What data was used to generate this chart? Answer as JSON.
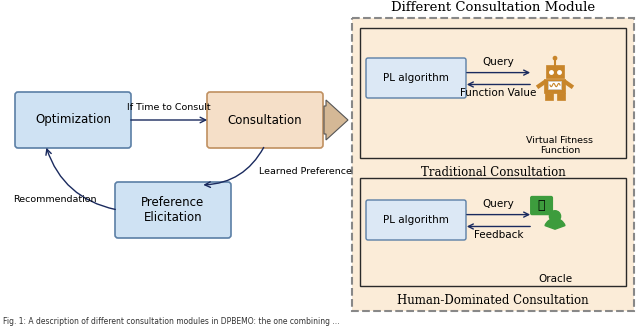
{
  "title_module": "Different Consultation Module",
  "title_traditional": "Traditional Consultation",
  "title_human": "Human-Dominated Consultation",
  "box_optimization": "Optimization",
  "box_consultation": "Consultation",
  "box_preference": "Preference\nElicitation",
  "box_pl_algorithm": "PL algorithm",
  "label_if_time": "If Time to Consult",
  "label_recommendation": "Recommendation",
  "label_learned": "Learned Preference",
  "label_query_top": "Query",
  "label_function_value": "Function Value",
  "label_virtual": "Virtual Fitness\nFunction",
  "label_query_bot": "Query",
  "label_feedback": "Feedback",
  "label_oracle": "Oracle",
  "color_blue_fill": "#cfe2f3",
  "color_blue_border": "#5b7fa6",
  "color_orange_fill": "#f5dfc8",
  "color_orange_border": "#c09060",
  "color_panel_bg": "#fbecd8",
  "color_dashed_border": "#888888",
  "color_arrow": "#1a2a5e",
  "color_robot": "#c8852a",
  "color_green": "#3d9c3d",
  "color_big_arrow": "#d4b896",
  "figsize": [
    6.4,
    3.31
  ],
  "dpi": 100
}
